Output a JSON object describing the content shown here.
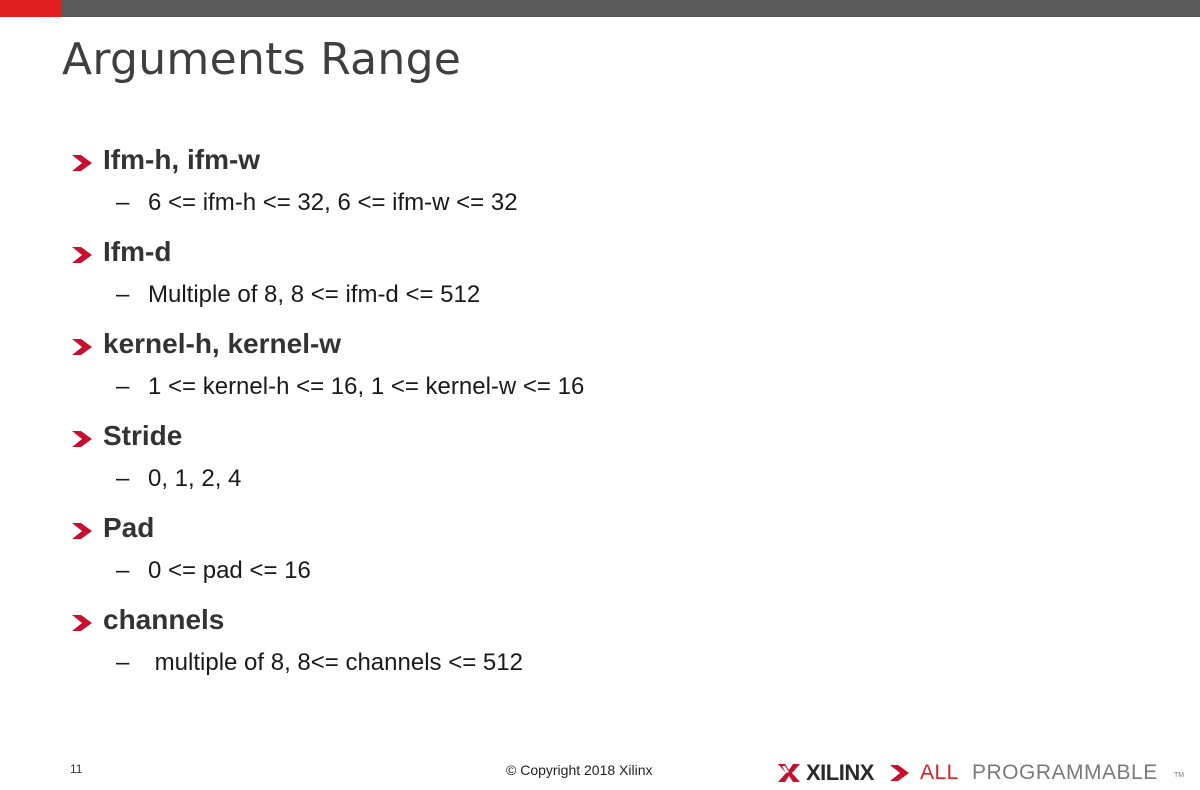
{
  "slide": {
    "title": "Arguments Range",
    "page_number": "11",
    "copyright": "© Copyright 2018 Xilinx"
  },
  "bullets": [
    {
      "label": "Ifm-h, ifm-w",
      "sub": "6 <= ifm-h <= 32, 6 <= ifm-w <= 32"
    },
    {
      "label": "Ifm-d",
      "sub": "Multiple of 8, 8 <= ifm-d <= 512"
    },
    {
      "label": "kernel-h, kernel-w",
      "sub": "1 <= kernel-h <= 16, 1 <= kernel-w <= 16"
    },
    {
      "label": "Stride",
      "sub": "0, 1, 2, 4"
    },
    {
      "label": "Pad",
      "sub": "0 <= pad <= 16"
    },
    {
      "label": "channels",
      "sub": " multiple of 8, 8<= channels <= 512"
    }
  ],
  "dash": "–",
  "logo": {
    "brand": "XILINX",
    "tagline_accent": "ALL",
    "tagline_rest": "PROGRAMMABLE",
    "trademark": "TM"
  },
  "colors": {
    "accent": "#e02020",
    "topbar": "#5a5a5a",
    "bullet_arrow": "#c8102e"
  },
  "icons": {
    "bullet": "chevron-right-icon",
    "logo_mark": "xilinx-x-icon"
  }
}
